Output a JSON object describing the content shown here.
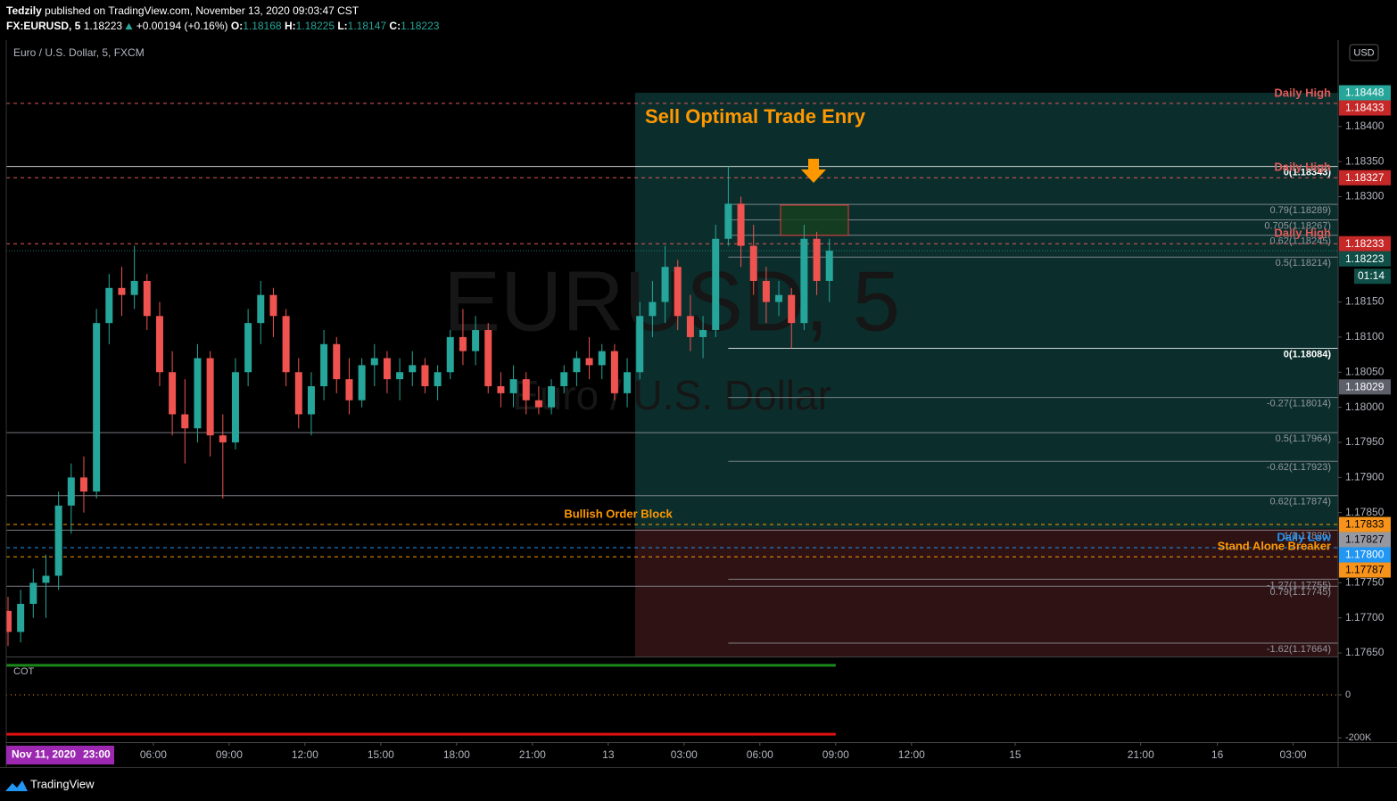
{
  "header": {
    "author": "Tedzily",
    "published": "published on TradingView.com, November 13, 2020 09:03:47 CST",
    "symbol": "FX:EURUSD, 5",
    "last": 1.18223,
    "change": "+0.00194 (+0.16%)",
    "o_label": "O:",
    "open": 1.18168,
    "h_label": "H:",
    "high": 1.18225,
    "l_label": "L:",
    "low": 1.18147,
    "c_label": "C:",
    "close": 1.18223
  },
  "footer": {
    "brand": "TradingView",
    "date": "Nov 11, 2020",
    "time": "23:00"
  },
  "chart_data": {
    "type": "candlestick",
    "title": "Euro / U.S. Dollar, 5, FXCM",
    "watermark": "EURUSD, 5",
    "watermark_sub": "Euro / U.S. Dollar",
    "currency": "USD",
    "annotation": "Sell Optimal Trade Enry",
    "up_color": "#26a69a",
    "down_color": "#ef5350",
    "xlim": [
      0.18,
      52.88
    ],
    "ylim": [
      1.17645,
      1.18523
    ],
    "xticks": [
      {
        "value": 6,
        "label": "06:00"
      },
      {
        "value": 9,
        "label": "09:00"
      },
      {
        "value": 12,
        "label": "12:00"
      },
      {
        "value": 15,
        "label": "15:00"
      },
      {
        "value": 18,
        "label": "18:00"
      },
      {
        "value": 21,
        "label": "21:00"
      },
      {
        "value": 24,
        "label": "13"
      },
      {
        "value": 27,
        "label": "03:00"
      },
      {
        "value": 30,
        "label": "06:00"
      },
      {
        "value": 33,
        "label": "09:00"
      },
      {
        "value": 36,
        "label": "12:00"
      },
      {
        "value": 40.1,
        "label": "15"
      },
      {
        "value": 45.07,
        "label": "21:00"
      },
      {
        "value": 48.1,
        "label": "16"
      },
      {
        "value": 51.1,
        "label": "03:00"
      }
    ],
    "yticks": [
      {
        "value": 1.184,
        "label": "1.18400"
      },
      {
        "value": 1.1835,
        "label": "1.18350"
      },
      {
        "value": 1.183,
        "label": "1.18300"
      },
      {
        "value": 1.1815,
        "label": "1.18150"
      },
      {
        "value": 1.181,
        "label": "1.18100"
      },
      {
        "value": 1.1805,
        "label": "1.18050"
      },
      {
        "value": 1.18,
        "label": "1.18000"
      },
      {
        "value": 1.1795,
        "label": "1.17950"
      },
      {
        "value": 1.179,
        "label": "1.17900"
      },
      {
        "value": 1.1785,
        "label": "1.17850"
      },
      {
        "value": 1.1775,
        "label": "1.17750"
      },
      {
        "value": 1.177,
        "label": "1.17700"
      },
      {
        "value": 1.1765,
        "label": "1.17650"
      }
    ],
    "candles": {
      "x": [
        0.25,
        0.75,
        1.25,
        1.75,
        2.25,
        2.75,
        3.25,
        3.75,
        4.25,
        4.75,
        5.25,
        5.75,
        6.25,
        6.75,
        7.25,
        7.75,
        8.25,
        8.75,
        9.25,
        9.75,
        10.25,
        10.75,
        11.25,
        11.75,
        12.25,
        12.75,
        13.25,
        13.75,
        14.25,
        14.75,
        15.25,
        15.75,
        16.25,
        16.75,
        17.25,
        17.75,
        18.25,
        18.75,
        19.25,
        19.75,
        20.25,
        20.75,
        21.25,
        21.75,
        22.25,
        22.75,
        23.25,
        23.75,
        24.25,
        24.75,
        25.25,
        25.75,
        26.25,
        26.75,
        27.25,
        27.75,
        28.25,
        28.75,
        29.25,
        29.75,
        30.25,
        30.75,
        31.25,
        31.75,
        32.25,
        32.75
      ],
      "open": [
        1.1771,
        1.1768,
        1.1772,
        1.1775,
        1.1776,
        1.1786,
        1.179,
        1.1788,
        1.1812,
        1.1817,
        1.1816,
        1.1818,
        1.1813,
        1.1805,
        1.1799,
        1.1797,
        1.1807,
        1.1796,
        1.1795,
        1.1805,
        1.1812,
        1.1816,
        1.1813,
        1.1805,
        1.1799,
        1.1803,
        1.1809,
        1.1804,
        1.1801,
        1.1806,
        1.1807,
        1.1804,
        1.1805,
        1.1806,
        1.1803,
        1.1805,
        1.181,
        1.1808,
        1.1811,
        1.1803,
        1.1802,
        1.1804,
        1.1801,
        1.18,
        1.1803,
        1.1805,
        1.1807,
        1.1806,
        1.1808,
        1.1802,
        1.1805,
        1.1813,
        1.1815,
        1.182,
        1.1813,
        1.181,
        1.1811,
        1.1824,
        1.1829,
        1.1823,
        1.1818,
        1.1815,
        1.1816,
        1.1812,
        1.1824,
        1.1818
      ],
      "high": [
        1.1773,
        1.1774,
        1.1777,
        1.1779,
        1.1788,
        1.1792,
        1.1793,
        1.1814,
        1.1819,
        1.182,
        1.1823,
        1.1819,
        1.1815,
        1.1808,
        1.1804,
        1.1809,
        1.1808,
        1.1799,
        1.1807,
        1.1814,
        1.1818,
        1.1817,
        1.1814,
        1.1807,
        1.1805,
        1.1811,
        1.181,
        1.1807,
        1.1807,
        1.1809,
        1.1808,
        1.1807,
        1.1808,
        1.1807,
        1.1806,
        1.1811,
        1.1814,
        1.1813,
        1.1812,
        1.1805,
        1.1806,
        1.1805,
        1.1803,
        1.1804,
        1.1806,
        1.1808,
        1.181,
        1.1809,
        1.1809,
        1.1807,
        1.1815,
        1.1818,
        1.1823,
        1.1821,
        1.1816,
        1.1813,
        1.1826,
        1.18343,
        1.183,
        1.1826,
        1.182,
        1.1818,
        1.1817,
        1.1826,
        1.1825,
        1.1824
      ],
      "low": [
        1.1766,
        1.17665,
        1.177,
        1.177,
        1.1774,
        1.1782,
        1.1785,
        1.1787,
        1.1809,
        1.1813,
        1.1814,
        1.1811,
        1.1803,
        1.1796,
        1.1792,
        1.1795,
        1.1793,
        1.1787,
        1.1794,
        1.1803,
        1.1809,
        1.181,
        1.1803,
        1.1797,
        1.1796,
        1.1801,
        1.1802,
        1.1799,
        1.18,
        1.1803,
        1.1802,
        1.1801,
        1.1803,
        1.1802,
        1.1801,
        1.1804,
        1.1806,
        1.1806,
        1.1802,
        1.18,
        1.18,
        1.1799,
        1.1799,
        1.1799,
        1.1802,
        1.1803,
        1.1804,
        1.1804,
        1.1801,
        1.18,
        1.1804,
        1.181,
        1.1812,
        1.1811,
        1.1808,
        1.1807,
        1.181,
        1.1823,
        1.182,
        1.1816,
        1.1812,
        1.1813,
        1.18084,
        1.1811,
        1.1816,
        1.1815
      ],
      "close": [
        1.1768,
        1.1772,
        1.1775,
        1.1776,
        1.1786,
        1.179,
        1.1788,
        1.1812,
        1.1817,
        1.1816,
        1.1818,
        1.1813,
        1.1805,
        1.1799,
        1.1797,
        1.1807,
        1.1796,
        1.1795,
        1.1805,
        1.1812,
        1.1816,
        1.1813,
        1.1805,
        1.1799,
        1.1803,
        1.1809,
        1.1804,
        1.1801,
        1.1806,
        1.1807,
        1.1804,
        1.1805,
        1.1806,
        1.1803,
        1.1805,
        1.181,
        1.1808,
        1.1811,
        1.1803,
        1.1802,
        1.1804,
        1.1801,
        1.18,
        1.1803,
        1.1805,
        1.1807,
        1.1806,
        1.1808,
        1.1802,
        1.1805,
        1.1813,
        1.1815,
        1.182,
        1.1813,
        1.181,
        1.1811,
        1.1824,
        1.1829,
        1.1823,
        1.1818,
        1.1815,
        1.1816,
        1.1812,
        1.1824,
        1.1818,
        1.18223
      ]
    },
    "position": {
      "target": 1.18448,
      "entry": 1.17827,
      "target_color": "#0b2e2c",
      "stop_color": "#2e1214"
    },
    "box": {
      "top": 1.18288,
      "bottom": 1.18245,
      "color": "#e53935",
      "fill": "#17401f"
    },
    "levels": [
      {
        "label": "Daily High",
        "value": 1.18433,
        "color": "#e05a5a",
        "label_align": "right"
      },
      {
        "label": "Daily High",
        "value": 1.18327,
        "color": "#e05a5a",
        "label_align": "right"
      },
      {
        "label": "Daily High",
        "value": 1.18233,
        "color": "#e05a5a",
        "label_align": "right"
      },
      {
        "label": "Bullish Order Block",
        "value": 1.17833,
        "color": "#ff9800",
        "label_align": "center"
      },
      {
        "label": "Daily Low",
        "value": 1.178,
        "color": "#2196f3",
        "label_align": "right"
      },
      {
        "label": "Stand Alone Breaker",
        "value": 1.17787,
        "color": "#ff9800",
        "label_align": "right"
      }
    ],
    "fib_full": [
      {
        "label": "0(1.18343)",
        "value": 1.18343,
        "color": "#ffffff"
      },
      {
        "label": "0.5(1.17964)",
        "value": 1.17964,
        "color": "#9598a1"
      },
      {
        "label": "0.62(1.17874)",
        "value": 1.17874,
        "color": "#9598a1"
      },
      {
        "label": "1(1.17825)",
        "value": 1.17825,
        "color": "#9598a1"
      },
      {
        "label": "0.79(1.17745)",
        "value": 1.17745,
        "color": "#9598a1"
      }
    ],
    "fib_partial": [
      {
        "label": "0.79(1.18289)",
        "value": 1.18289,
        "color": "#9598a1"
      },
      {
        "label": "0.705(1.18267)",
        "value": 1.18267,
        "color": "#9598a1"
      },
      {
        "label": "0.62(1.18245)",
        "value": 1.18245,
        "color": "#9598a1"
      },
      {
        "label": "0.5(1.18214)",
        "value": 1.18214,
        "color": "#9598a1"
      },
      {
        "label": "0(1.18084)",
        "value": 1.18084,
        "color": "#ffffff"
      },
      {
        "label": "-0.27(1.18014)",
        "value": 1.18014,
        "color": "#9598a1"
      },
      {
        "label": "-0.62(1.17923)",
        "value": 1.17923,
        "color": "#9598a1"
      },
      {
        "label": "-1.27(1.17755)",
        "value": 1.17755,
        "color": "#9598a1"
      },
      {
        "label": "-1.62(1.17664)",
        "value": 1.17664,
        "color": "#9598a1"
      }
    ],
    "price_tags": [
      {
        "value": 1.18448,
        "label": "1.18448",
        "color": "#26a69a"
      },
      {
        "value": 1.18433,
        "label": "1.18433",
        "color": "#c62828"
      },
      {
        "value": 1.18327,
        "label": "1.18327",
        "color": "#c62828"
      },
      {
        "value": 1.18233,
        "label": "1.18233",
        "color": "#c62828"
      },
      {
        "value": 1.18223,
        "label": "1.18223",
        "color": "#0f4f48",
        "countdown": "01:14"
      },
      {
        "value": 1.18029,
        "label": "1.18029",
        "color": "#5d606b"
      },
      {
        "value": 1.17833,
        "label": "1.17833",
        "color": "#f7931a"
      },
      {
        "value": 1.17827,
        "label": "1.17827",
        "color": "#9598a1"
      },
      {
        "value": 1.178,
        "label": "1.17800",
        "color": "#2196f3"
      },
      {
        "value": 1.17787,
        "label": "1.17787",
        "color": "#f7931a"
      }
    ],
    "cot": {
      "title": "COT",
      "ylim": [
        -220000,
        170000
      ],
      "yticks": [
        0,
        {
          "value": -200000,
          "label": "-200K"
        }
      ],
      "series": [
        {
          "value": 137500,
          "color": "#1b8a1b"
        },
        {
          "value": -183000,
          "color": "#e01010"
        }
      ],
      "end": 33
    }
  }
}
